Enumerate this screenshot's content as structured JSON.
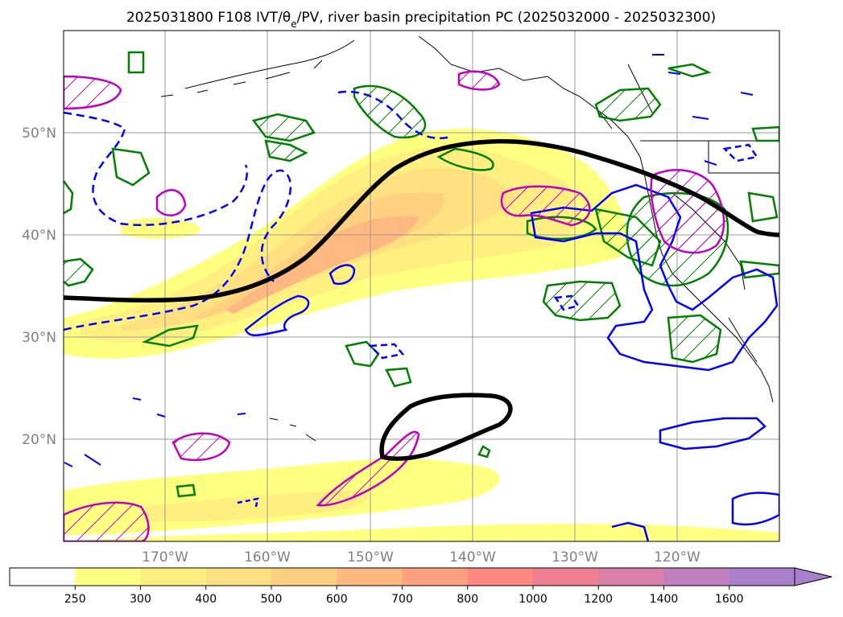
{
  "title": "2025031800 F108 IVT/θe/PV, river basin precipitation PC (2025032000 - 2025032300)",
  "map": {
    "lat_labels": [
      "50°N",
      "40°N",
      "30°N",
      "20°N"
    ],
    "lon_labels": [
      "170°W",
      "160°W",
      "150°W",
      "140°W",
      "130°W",
      "120°W"
    ],
    "lon_range": [
      -180,
      -110
    ],
    "lat_range": [
      10,
      60
    ],
    "gridlines": true
  },
  "colorbar": {
    "ticks": [
      "250",
      "300",
      "400",
      "500",
      "600",
      "700",
      "800",
      "1000",
      "1200",
      "1400",
      "1600"
    ],
    "colors": [
      "#ffffff",
      "#ffff80",
      "#ffef80",
      "#ffe080",
      "#ffd080",
      "#ffb880",
      "#ffa080",
      "#ff8880",
      "#f08090",
      "#d880a8",
      "#c080c0",
      "#a880cc"
    ],
    "extend": "max"
  },
  "colors": {
    "ivt_low": "#ffff80",
    "ivt_mid": "#ffd080",
    "ivt_high": "#ffa080",
    "theta_contour": "#0000ff",
    "pv_contour": "#c000c0",
    "precip_contour": "#008000",
    "jet_contour": "#000000"
  }
}
